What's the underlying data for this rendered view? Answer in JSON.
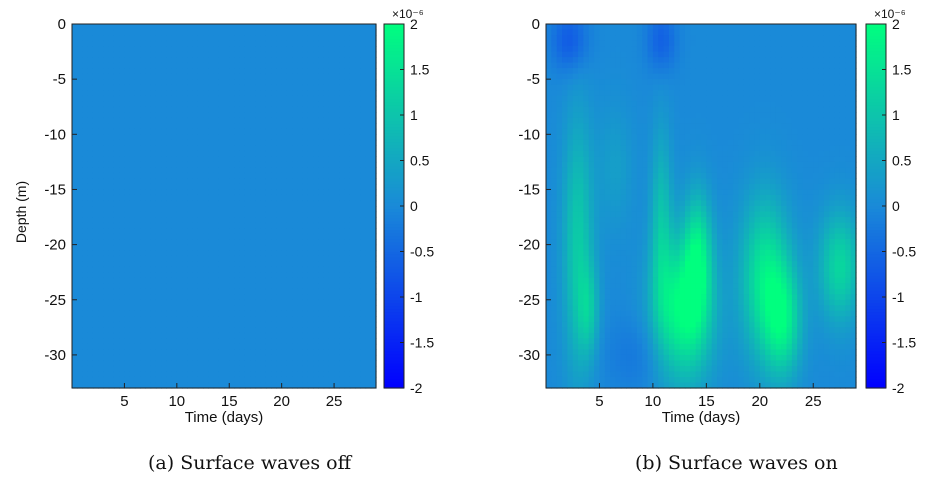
{
  "figure": {
    "panels": [
      {
        "caption": "(a) Surface waves off"
      },
      {
        "caption": "(b) Surface waves on"
      }
    ]
  },
  "chart_data": [
    {
      "type": "heatmap",
      "title": "",
      "xlabel": "Time (days)",
      "ylabel": "Depth (m)",
      "xlim": [
        0,
        29
      ],
      "ylim": [
        -33,
        0
      ],
      "x_ticks": [
        5,
        10,
        15,
        20,
        25
      ],
      "y_ticks": [
        0,
        -5,
        -10,
        -15,
        -20,
        -25,
        -30
      ],
      "colorbar": {
        "range": [
          -2,
          2
        ],
        "ticks": [
          2,
          1.5,
          1,
          0.5,
          0,
          -0.5,
          -1,
          -1.5,
          -2
        ],
        "multiplier": "×10⁻⁶",
        "colormap": [
          "#0000ff",
          "#1a8ad8",
          "#00ff7f"
        ]
      },
      "field_description": "near-uniform value ≈ 0 everywhere",
      "field": {
        "background": 0.0,
        "blobs": []
      }
    },
    {
      "type": "heatmap",
      "title": "",
      "xlabel": "Time (days)",
      "ylabel": "",
      "xlim": [
        0,
        29
      ],
      "ylim": [
        -33,
        0
      ],
      "x_ticks": [
        5,
        10,
        15,
        20,
        25
      ],
      "y_ticks": [
        0,
        -5,
        -10,
        -15,
        -20,
        -25,
        -30
      ],
      "colorbar": {
        "range": [
          -2,
          2
        ],
        "ticks": [
          2,
          1.5,
          1,
          0.5,
          0,
          -0.5,
          -1,
          -1.5,
          -2
        ],
        "multiplier": "×10⁻⁶",
        "colormap": [
          "#0000ff",
          "#1a8ad8",
          "#00ff7f"
        ]
      },
      "field_description": "positive anomalies (up to ~2e-6) at depth, strongest near days 11-14 and 19-23 around -22 to -30 m; slight negative patches near surface",
      "field": {
        "background": 0.0,
        "blobs": [
          {
            "t": 3.0,
            "d": -20,
            "st": 1.0,
            "sd": 8,
            "amp": 1.1
          },
          {
            "t": 4.0,
            "d": -26,
            "st": 0.7,
            "sd": 3,
            "amp": 0.8
          },
          {
            "t": 12.8,
            "d": -26,
            "st": 1.9,
            "sd": 4.5,
            "amp": 2.0
          },
          {
            "t": 14.2,
            "d": -21,
            "st": 0.9,
            "sd": 4,
            "amp": 1.4
          },
          {
            "t": 10.8,
            "d": -18,
            "st": 0.7,
            "sd": 6,
            "amp": 0.9
          },
          {
            "t": 20.5,
            "d": -23,
            "st": 1.6,
            "sd": 5,
            "amp": 1.6
          },
          {
            "t": 22.2,
            "d": -27,
            "st": 1.2,
            "sd": 3.5,
            "amp": 1.4
          },
          {
            "t": 27.5,
            "d": -22,
            "st": 1.4,
            "sd": 3.5,
            "amp": 1.3
          },
          {
            "t": 6.5,
            "d": -13,
            "st": 1.2,
            "sd": 4,
            "amp": 0.35
          },
          {
            "t": 2.2,
            "d": -1.5,
            "st": 1.2,
            "sd": 2,
            "amp": -0.7
          },
          {
            "t": 10.8,
            "d": -1.5,
            "st": 1.0,
            "sd": 2,
            "amp": -0.6
          },
          {
            "t": 9.0,
            "d": -30,
            "st": 2.5,
            "sd": 2.5,
            "amp": -0.3
          }
        ]
      }
    }
  ]
}
